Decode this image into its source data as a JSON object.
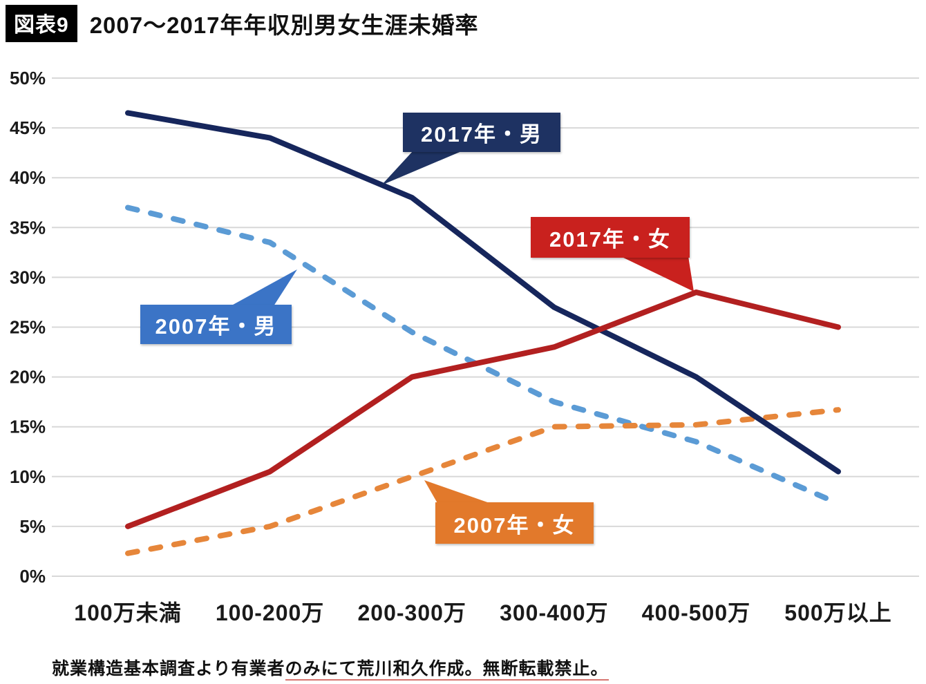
{
  "header": {
    "badge": "図表9",
    "title": "2007〜2017年年収別男女生涯未婚率"
  },
  "chart_data": {
    "type": "line",
    "title": "2007〜2017年年収別男女生涯未婚率",
    "categories": [
      "100万未満",
      "100-200万",
      "200-300万",
      "300-400万",
      "400-500万",
      "500万以上"
    ],
    "series": [
      {
        "name": "2017年・男",
        "color": "#16265c",
        "dash": false,
        "values": [
          46.5,
          44.0,
          38.0,
          27.0,
          20.0,
          10.5
        ]
      },
      {
        "name": "2007年・男",
        "color": "#5b9bd5",
        "dash": true,
        "values": [
          37.0,
          33.5,
          24.5,
          17.5,
          13.5,
          7.3
        ]
      },
      {
        "name": "2017年・女",
        "color": "#b22020",
        "dash": false,
        "values": [
          5.0,
          10.5,
          20.0,
          23.0,
          28.5,
          25.0
        ]
      },
      {
        "name": "2007年・女",
        "color": "#e6863a",
        "dash": true,
        "values": [
          2.3,
          5.0,
          10.0,
          15.0,
          15.2,
          16.7
        ]
      }
    ],
    "xlabel": "",
    "ylabel": "",
    "ylim": [
      0,
      50
    ],
    "ytick_step": 5,
    "ytick_format": "percent",
    "grid": true,
    "legend_position": "callout-labels-on-plot",
    "grid_color": "#d8d8d8"
  },
  "callouts": [
    {
      "label": "2017年・男",
      "box_color": "#1e3262"
    },
    {
      "label": "2007年・男",
      "box_color": "#3b74c6"
    },
    {
      "label": "2017年・女",
      "box_color": "#c9211e"
    },
    {
      "label": "2007年・女",
      "box_color": "#e2792b"
    }
  ],
  "footer": {
    "parts": [
      {
        "text": "就業構造基本調査より有業者",
        "underline": false
      },
      {
        "text": "のみにて荒川和久作成。",
        "underline": true
      },
      {
        "text": "無断転載禁止。",
        "underline": true
      }
    ]
  }
}
